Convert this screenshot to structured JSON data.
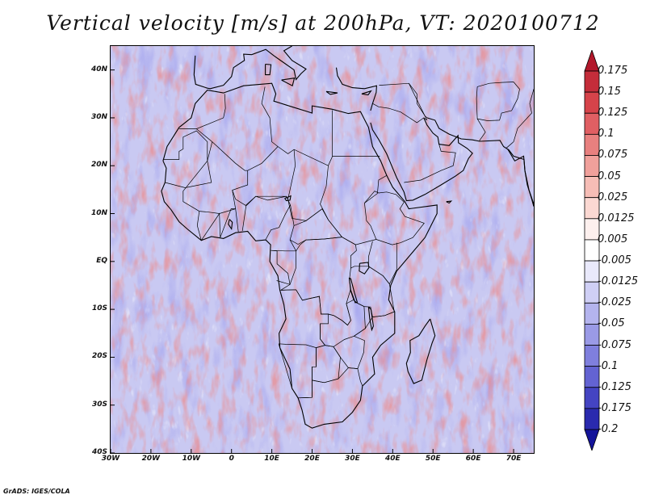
{
  "title": "Vertical velocity [m/s] at 200hPa, VT: 2020100712",
  "footer": "GrADS: IGES/COLA",
  "map": {
    "lon_range": [
      -30,
      75
    ],
    "lat_range": [
      -40,
      45
    ],
    "lat_ticks": [
      {
        "value": 40,
        "label": "40N"
      },
      {
        "value": 30,
        "label": "30N"
      },
      {
        "value": 20,
        "label": "20N"
      },
      {
        "value": 10,
        "label": "10N"
      },
      {
        "value": 0,
        "label": "EQ"
      },
      {
        "value": -10,
        "label": "10S"
      },
      {
        "value": -20,
        "label": "20S"
      },
      {
        "value": -30,
        "label": "30S"
      },
      {
        "value": -40,
        "label": "40S"
      }
    ],
    "lon_ticks": [
      {
        "value": -30,
        "label": "30W"
      },
      {
        "value": -20,
        "label": "20W"
      },
      {
        "value": -10,
        "label": "10W"
      },
      {
        "value": 0,
        "label": "0"
      },
      {
        "value": 10,
        "label": "10E"
      },
      {
        "value": 20,
        "label": "20E"
      },
      {
        "value": 30,
        "label": "30E"
      },
      {
        "value": 40,
        "label": "40E"
      },
      {
        "value": 50,
        "label": "50E"
      },
      {
        "value": 60,
        "label": "60E"
      },
      {
        "value": 70,
        "label": "70E"
      }
    ]
  },
  "colorbar": {
    "levels": [
      "0.175",
      "0.15",
      "0.125",
      "0.1",
      "0.075",
      "0.05",
      "0.025",
      "0.0125",
      "0.005",
      "-0.005",
      "-0.0125",
      "-0.025",
      "-0.05",
      "-0.075",
      "-0.1",
      "-0.125",
      "-0.175",
      "-0.2"
    ],
    "colors": [
      "#b2182b",
      "#c42d3a",
      "#d6434a",
      "#e05f63",
      "#e8807f",
      "#f0a09b",
      "#f6bdb6",
      "#fbd8d2",
      "#fdf0ee",
      "#ffffff",
      "#e9e9fb",
      "#cfcff5",
      "#b4b4ee",
      "#9a9ae6",
      "#7f7fdd",
      "#6363d2",
      "#4444c2",
      "#2a2aae",
      "#14149a"
    ]
  }
}
